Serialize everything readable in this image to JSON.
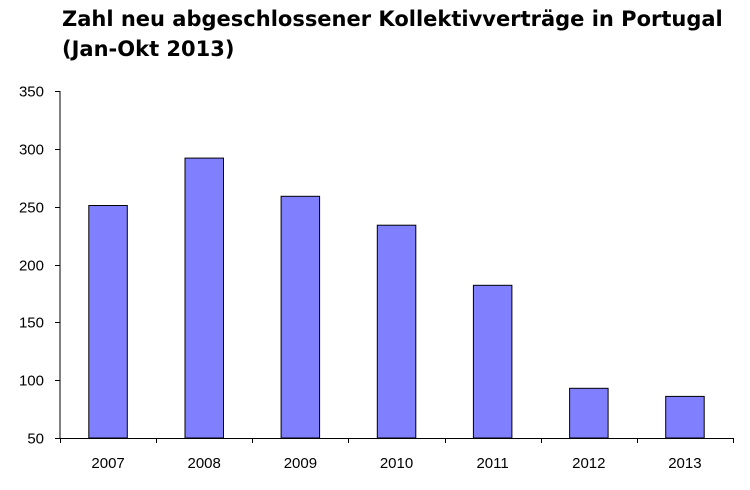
{
  "chart_data": {
    "type": "bar",
    "title": [
      "Zahl neu abgeschlossener Kollektivverträge in Portugal",
      "(Jan-Okt 2013)"
    ],
    "categories": [
      "2007",
      "2008",
      "2009",
      "2010",
      "2011",
      "2012",
      "2013"
    ],
    "values": [
      251,
      292,
      259,
      234,
      182,
      93,
      86
    ],
    "ylim": [
      50,
      350
    ],
    "yticks": [
      "50",
      "100",
      "150",
      "200",
      "250",
      "300",
      "350"
    ],
    "xlabel": "",
    "ylabel": "",
    "grid": false,
    "legend": "none",
    "bar_color": "#8080ff",
    "bar_edge_color": "#000000"
  }
}
